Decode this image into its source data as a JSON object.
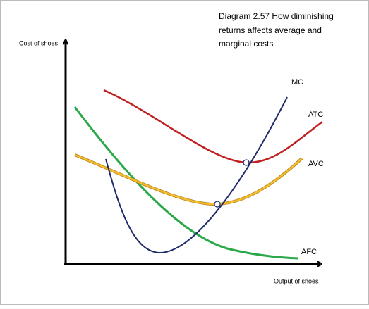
{
  "title": [
    "Diagram  2.57 How diminishing",
    "returns affects average and",
    "marginal costs"
  ],
  "y_axis_label": "Cost of shoes",
  "x_axis_label": "Output of shoes",
  "curves": [
    {
      "label": "MC"
    },
    {
      "label": "ATC"
    },
    {
      "label": "AVC"
    },
    {
      "label": "AFC"
    }
  ]
}
